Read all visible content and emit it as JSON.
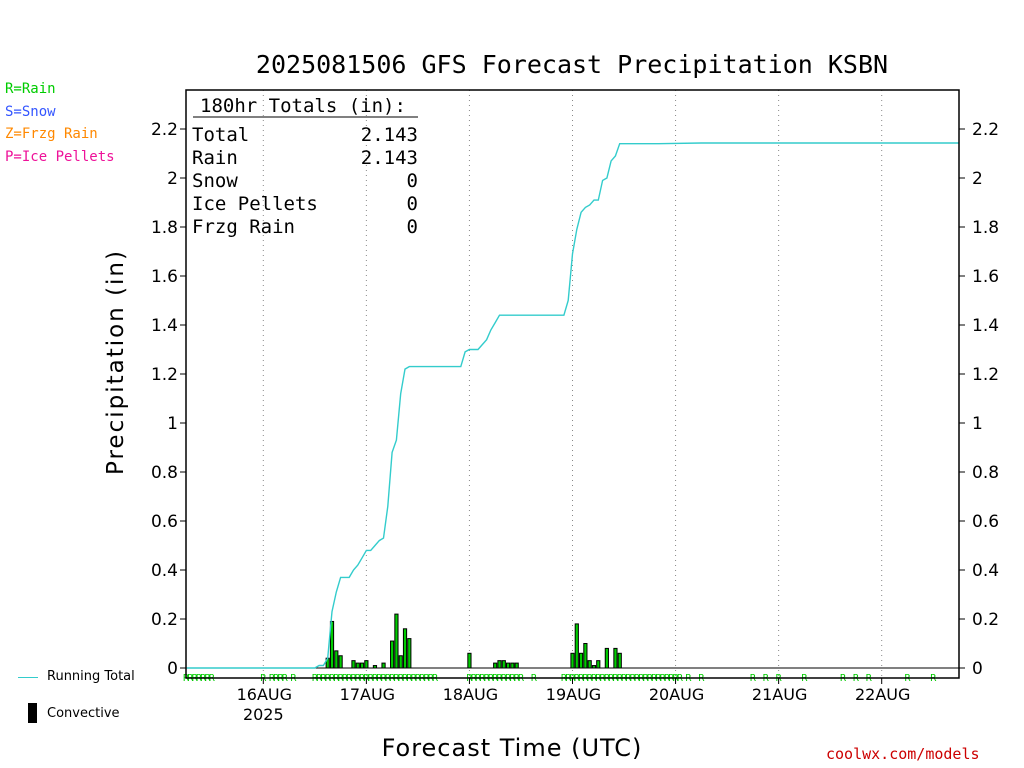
{
  "title": "2025081506 GFS Forecast Precipitation KSBN",
  "legend_types": [
    {
      "text": "R=Rain",
      "color": "#00cc00"
    },
    {
      "text": "S=Snow",
      "color": "#3355ff"
    },
    {
      "text": "Z=Frzg Rain",
      "color": "#ff8800"
    },
    {
      "text": "P=Ice Pellets",
      "color": "#ee1199"
    }
  ],
  "totals": {
    "header": "180hr Totals (in):",
    "rows": [
      {
        "label": "Total",
        "value": "2.143"
      },
      {
        "label": "Rain",
        "value": "2.143"
      },
      {
        "label": "Snow",
        "value": "0"
      },
      {
        "label": "Ice Pellets",
        "value": "0"
      },
      {
        "label": "Frzg Rain",
        "value": "0"
      }
    ]
  },
  "key": {
    "running_total": "Running Total",
    "convective": "Convective"
  },
  "credit": "coolwx.com/models",
  "colors": {
    "running_total": "#33cccc",
    "bar_fill": "#00cc00",
    "bar_edge": "#000000",
    "rain_marker": "#00cc00"
  },
  "chart_data": {
    "type": "bar",
    "title": "2025081506 GFS Forecast Precipitation KSBN",
    "xlabel": "Forecast Time (UTC)",
    "ylabel": "Precipitation (in)",
    "ylim": [
      0,
      2.3
    ],
    "yticks": [
      0,
      0.2,
      0.4,
      0.6,
      0.8,
      1,
      1.2,
      1.4,
      1.6,
      1.8,
      2,
      2.2
    ],
    "ytick_labels": [
      "0",
      "0.2",
      "0.4",
      "0.6",
      "0.8",
      "1",
      "1.2",
      "1.4",
      "1.6",
      "1.8",
      "2",
      "2.2"
    ],
    "x_unit": "forecast hour",
    "xlim": [
      0,
      180
    ],
    "xticks": [
      {
        "x": 18,
        "label": "16AUG",
        "sublabel": "2025"
      },
      {
        "x": 42,
        "label": "17AUG",
        "sublabel": ""
      },
      {
        "x": 66,
        "label": "18AUG",
        "sublabel": ""
      },
      {
        "x": 90,
        "label": "19AUG",
        "sublabel": ""
      },
      {
        "x": 114,
        "label": "20AUG",
        "sublabel": ""
      },
      {
        "x": 138,
        "label": "21AUG",
        "sublabel": ""
      },
      {
        "x": 162,
        "label": "22AUG",
        "sublabel": ""
      }
    ],
    "grid": true,
    "series": [
      {
        "name": "Running Total",
        "type": "line",
        "x": [
          0,
          30,
          31,
          32,
          33,
          34,
          35,
          36,
          37,
          38,
          39,
          40,
          41,
          42,
          43,
          44,
          45,
          46,
          47,
          48,
          49,
          50,
          51,
          52,
          53,
          54,
          55,
          56,
          57,
          58,
          60,
          62,
          64,
          65,
          66,
          67,
          68,
          70,
          71,
          72,
          73,
          74,
          75,
          76,
          78,
          80,
          84,
          88,
          89,
          90,
          91,
          92,
          93,
          94,
          95,
          96,
          97,
          98,
          99,
          100,
          101,
          102,
          103,
          104,
          105,
          110,
          120,
          130,
          150,
          180
        ],
        "y": [
          0,
          0,
          0.01,
          0.01,
          0.04,
          0.23,
          0.31,
          0.37,
          0.37,
          0.37,
          0.4,
          0.42,
          0.45,
          0.48,
          0.48,
          0.5,
          0.52,
          0.53,
          0.66,
          0.88,
          0.93,
          1.12,
          1.22,
          1.23,
          1.23,
          1.23,
          1.23,
          1.23,
          1.23,
          1.23,
          1.23,
          1.23,
          1.23,
          1.29,
          1.3,
          1.3,
          1.3,
          1.34,
          1.38,
          1.41,
          1.44,
          1.44,
          1.44,
          1.44,
          1.44,
          1.44,
          1.44,
          1.44,
          1.5,
          1.69,
          1.79,
          1.86,
          1.88,
          1.89,
          1.91,
          1.91,
          1.99,
          2.0,
          2.07,
          2.09,
          2.14,
          2.14,
          2.14,
          2.14,
          2.14,
          2.14,
          2.143,
          2.143,
          2.143,
          2.143
        ]
      },
      {
        "name": "Convective",
        "type": "bar",
        "x": [
          33,
          34,
          35,
          36,
          39,
          40,
          41,
          42,
          44,
          46,
          48,
          49,
          50,
          51,
          52,
          66,
          72,
          73,
          74,
          75,
          76,
          77,
          90,
          91,
          92,
          93,
          94,
          95,
          96,
          98,
          100,
          101
        ],
        "values": [
          0.04,
          0.19,
          0.07,
          0.05,
          0.03,
          0.02,
          0.02,
          0.03,
          0.01,
          0.02,
          0.11,
          0.22,
          0.05,
          0.16,
          0.12,
          0.06,
          0.02,
          0.03,
          0.03,
          0.02,
          0.02,
          0.02,
          0.06,
          0.18,
          0.06,
          0.1,
          0.03,
          0.01,
          0.03,
          0.08,
          0.08,
          0.06
        ]
      }
    ],
    "precip_type_markers": {
      "symbol": "R",
      "x": [
        0,
        1,
        2,
        3,
        4,
        5,
        6,
        18,
        20,
        21,
        22,
        23,
        25,
        30,
        31,
        32,
        33,
        34,
        35,
        36,
        37,
        38,
        39,
        40,
        41,
        42,
        43,
        44,
        45,
        46,
        47,
        48,
        49,
        50,
        51,
        52,
        53,
        54,
        55,
        56,
        57,
        58,
        66,
        67,
        68,
        69,
        70,
        71,
        72,
        73,
        74,
        75,
        76,
        77,
        78,
        81,
        88,
        89,
        90,
        91,
        92,
        93,
        94,
        95,
        96,
        97,
        98,
        99,
        100,
        101,
        102,
        103,
        104,
        105,
        106,
        107,
        108,
        109,
        110,
        111,
        112,
        113,
        114,
        115,
        117,
        120,
        132,
        135,
        138,
        144,
        153,
        156,
        159,
        168,
        174
      ]
    }
  }
}
